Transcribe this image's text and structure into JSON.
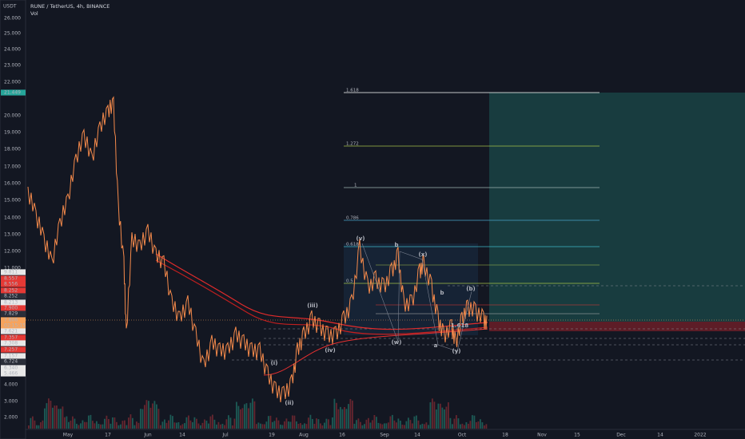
{
  "header": {
    "currency": "USDT",
    "symbol": "RUNE / TetherUS, 4h, BINANCE",
    "indicator": "Vol"
  },
  "price_axis": [
    "26.000",
    "25.000",
    "24.000",
    "23.000",
    "22.000",
    "21.449",
    "20.000",
    "19.000",
    "18.000",
    "17.000",
    "16.000",
    "15.000",
    "14.000",
    "13.000",
    "12.000",
    "11.000",
    "9.811",
    "8.557",
    "8.556",
    "8.252",
    "8.252",
    "8.213",
    "7.900",
    "7.829",
    "7.806",
    "02:15:15",
    "7.621",
    "7.357",
    "7.308",
    "7.257",
    "7.157",
    "6.724",
    "6.340",
    "5.466",
    "4.000",
    "3.000",
    "2.000"
  ],
  "time_axis": [
    "May",
    "17",
    "Jun",
    "14",
    "Jul",
    "19",
    "Aug",
    "16",
    "Sep",
    "14",
    "Oct",
    "18",
    "Nov",
    "15",
    "Dec",
    "14",
    "2022"
  ],
  "fib_levels": [
    "1.618",
    "1.272",
    "1",
    "0.786",
    "0.618",
    "0.5"
  ],
  "wave_labels": [
    "(v)",
    "b",
    "(x)",
    "(iii)",
    "(iv)",
    "(i)",
    "(ii)",
    "(w)",
    "a",
    "(y)",
    "b",
    "(b)",
    "1.618"
  ]
}
